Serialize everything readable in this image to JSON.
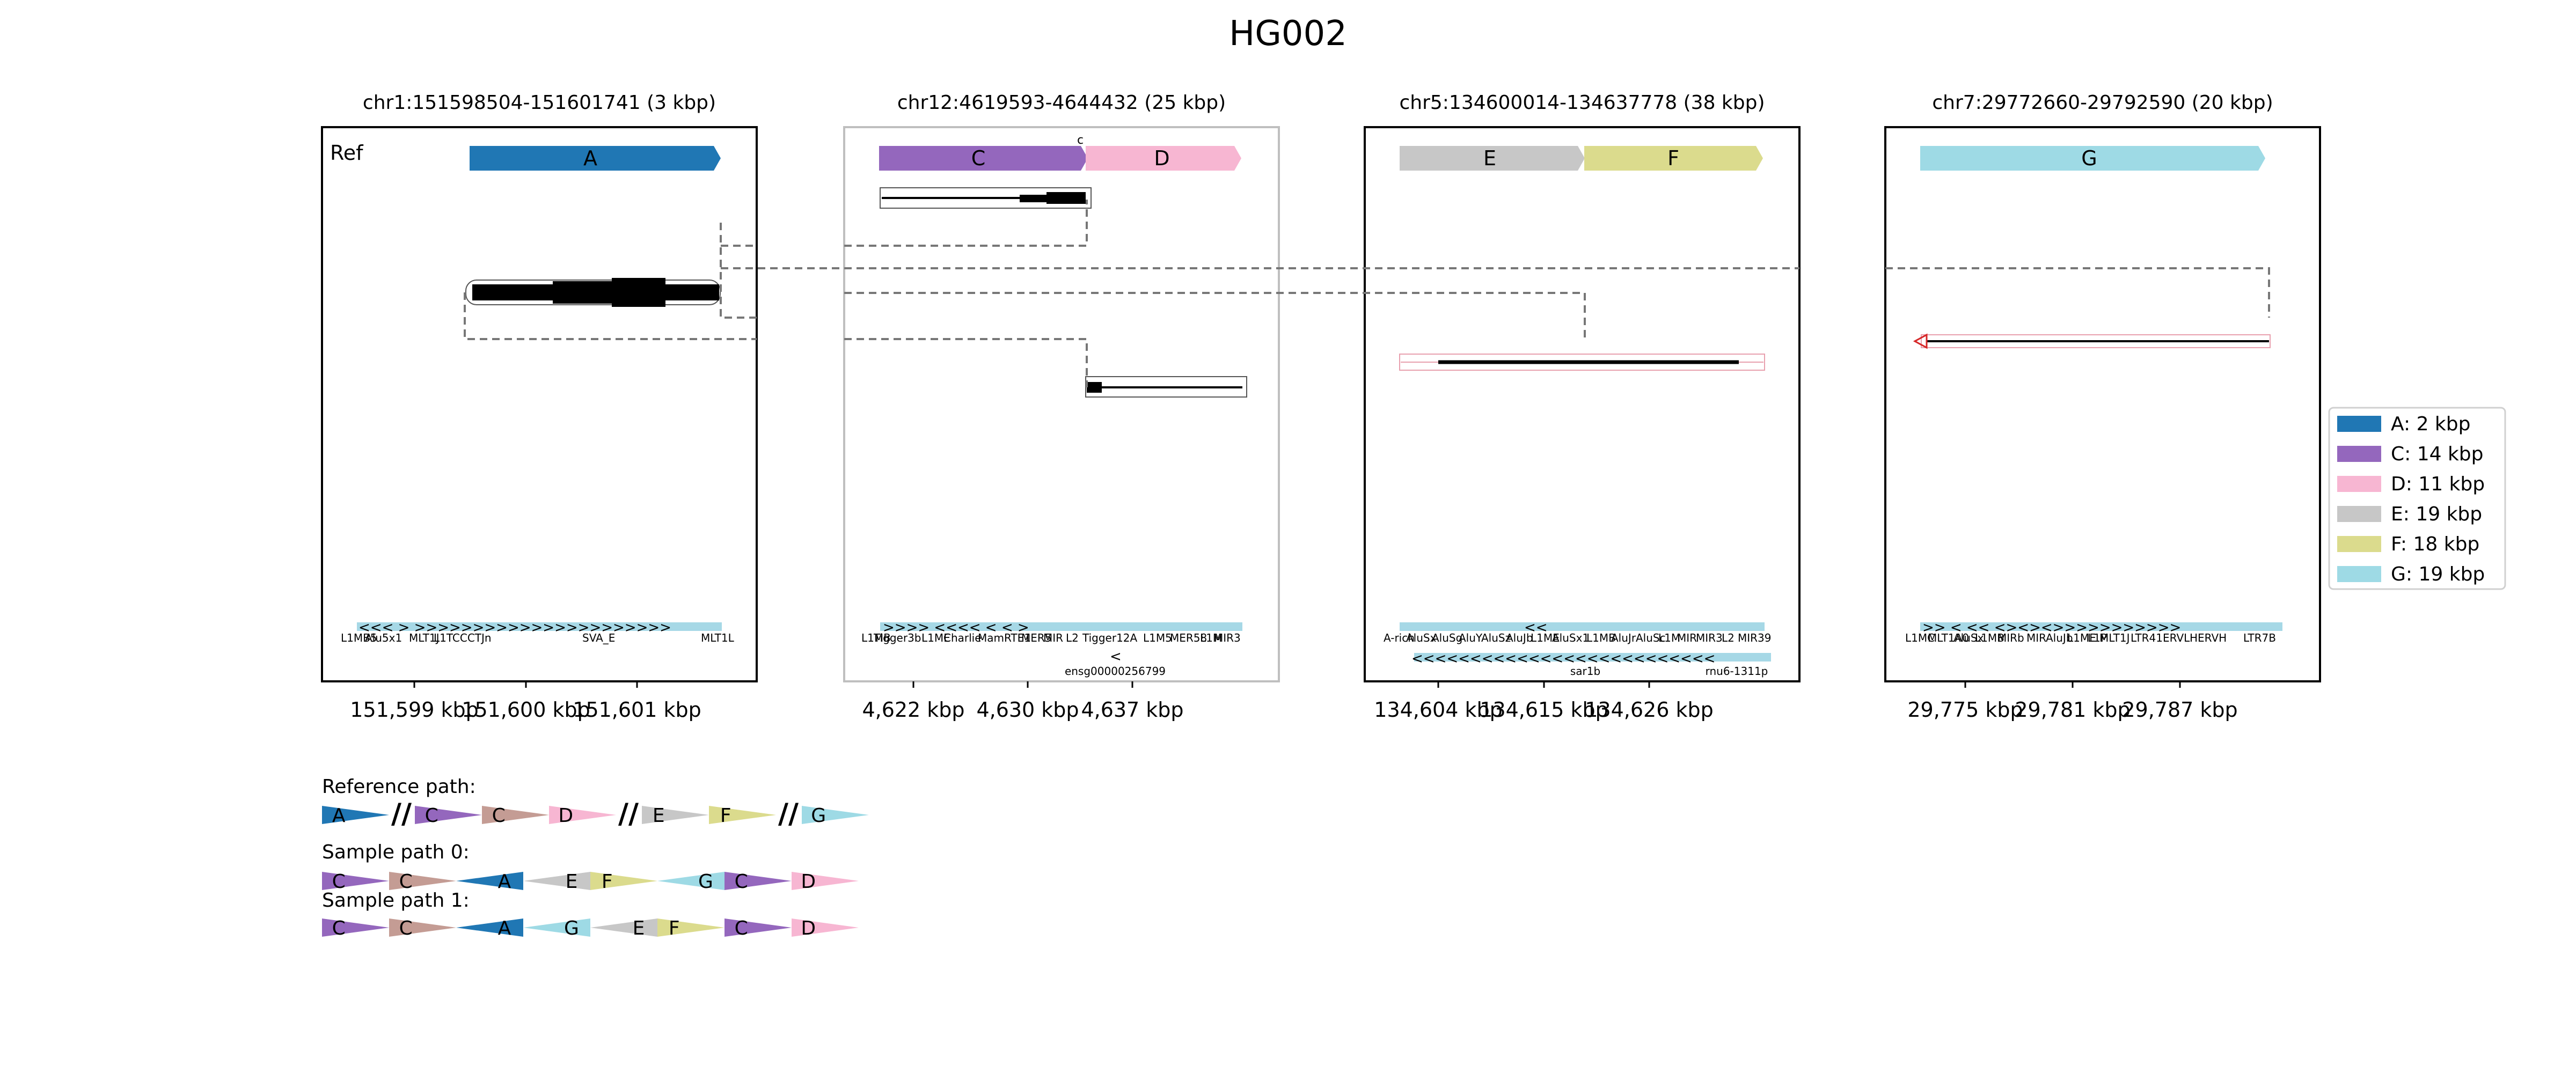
{
  "title": "HG002",
  "ref_label": "Ref",
  "panels": [
    {
      "region": "chr1:151598504-151601741 (3 kbp)",
      "segments": [
        {
          "name": "A",
          "color": "#2077b4",
          "start_kbp": 151599.2,
          "end_kbp": 151601.4
        }
      ],
      "ticks": [
        "151,599 kbp",
        "151,600 kbp",
        "151,601 kbp"
      ],
      "annotations": [
        "L1MB5",
        "Alu5x1",
        "MLT1J",
        "L1TCCCTJn",
        "SVA_E",
        "MLT1L"
      ]
    },
    {
      "region": "chr12:4619593-4644432 (25 kbp)",
      "segments": [
        {
          "name": "C",
          "color": "#9467bd",
          "start_kbp": 4619.9,
          "end_kbp": 4633.9
        },
        {
          "name": "D",
          "color": "#f7b6d2",
          "start_kbp": 4633.9,
          "end_kbp": 4644.7
        }
      ],
      "ticks": [
        "4,622 kbp",
        "4,630 kbp",
        "4,637 kbp"
      ],
      "annotations": [
        "L1MB",
        "Tigger3b",
        "L1ME",
        "Charlie",
        "MamRTE1",
        "MER5",
        "MIR",
        "L2",
        "Tigger12A",
        "L1M5",
        "MER58",
        "L1M",
        "MIR3"
      ],
      "gene": "ensg00000256799",
      "note": "c"
    },
    {
      "region": "chr5:134600014-134637778 (38 kbp)",
      "segments": [
        {
          "name": "E",
          "color": "#c7c7c7",
          "start_kbp": 134602.3,
          "end_kbp": 134621.3
        },
        {
          "name": "F",
          "color": "#dbdb8d",
          "start_kbp": 134621.3,
          "end_kbp": 134639.1
        }
      ],
      "ticks": [
        "134,604 kbp",
        "134,615 kbp",
        "134,626 kbp"
      ],
      "annotations": [
        "A-rich",
        "AluSx",
        "AluSg",
        "AluY",
        "AluSz",
        "AluJb",
        "L1ME",
        "AluSx1",
        "L1MB",
        "AluJr",
        "AluSc",
        "L1M",
        "MIR",
        "MIR3",
        "L2",
        "MIR39"
      ],
      "genes": [
        "sar1b",
        "rnu6-1311p"
      ]
    },
    {
      "region": "chr7:29772660-29792590 (20 kbp)",
      "segments": [
        {
          "name": "G",
          "color": "#9edae5",
          "start_kbp": 29772.9,
          "end_kbp": 29792.2
        }
      ],
      "ticks": [
        "29,775 kbp",
        "29,781 kbp",
        "29,787 kbp"
      ],
      "annotations": [
        "L1MC",
        "MLT1A0",
        "AluSx",
        "L1MB",
        "MIRb",
        "MIR",
        "AluJb",
        "L1ME",
        "L1P",
        "MLT1J",
        "LTR41",
        "ERVL",
        "HERVH",
        "LTR7B"
      ]
    }
  ],
  "legend": [
    {
      "label": "A: 2 kbp",
      "color": "#2077b4"
    },
    {
      "label": "C: 14 kbp",
      "color": "#9467bd"
    },
    {
      "label": "D: 11 kbp",
      "color": "#f7b6d2"
    },
    {
      "label": "E: 19 kbp",
      "color": "#c7c7c7"
    },
    {
      "label": "F: 18 kbp",
      "color": "#dbdb8d"
    },
    {
      "label": "G: 19 kbp",
      "color": "#9edae5"
    }
  ],
  "paths": [
    {
      "label": "Reference path:",
      "tokens": [
        "A",
        "//",
        "C",
        "C",
        "D",
        "//",
        "E",
        "F",
        "//",
        "G"
      ],
      "flip": []
    },
    {
      "label": "Sample path 0:",
      "tokens": [
        "C",
        "C",
        "A",
        "E",
        "F",
        "G",
        "C",
        "D"
      ],
      "flip": [
        2,
        3,
        5
      ]
    },
    {
      "label": "Sample path 1:",
      "tokens": [
        "C",
        "C",
        "A",
        "G",
        "E",
        "F",
        "C",
        "D"
      ],
      "flip": [
        2,
        3,
        4
      ]
    }
  ],
  "path_colors": {
    "A": "#2077b4",
    "C": "#9467bd",
    "C2": "#c49c94",
    "D": "#f7b6d2",
    "E": "#c7c7c7",
    "F": "#dbdb8d",
    "G": "#9edae5"
  }
}
